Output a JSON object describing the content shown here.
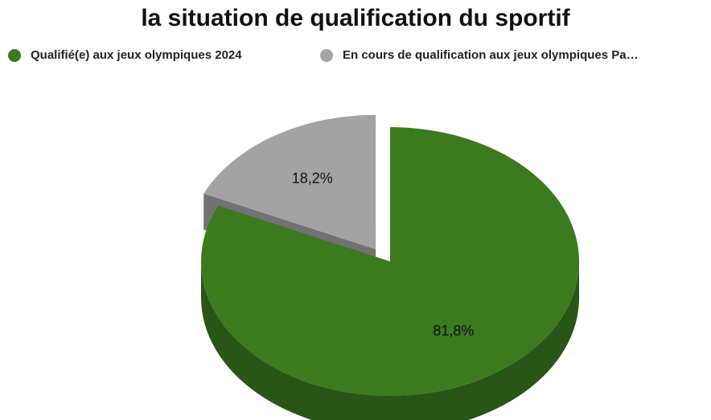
{
  "chart_data": {
    "type": "pie",
    "title": "la situation de qualification du sportif",
    "categories": [
      "Qualifié(e) aux jeux olympiques 2024",
      "En cours de qualification aux jeux olympiques Pa…"
    ],
    "values": [
      81.8,
      18.2
    ],
    "value_labels": [
      "81,8%",
      "18,2%"
    ],
    "colors": [
      "#3b7a1f",
      "#a3a3a3"
    ],
    "legend": "top"
  }
}
